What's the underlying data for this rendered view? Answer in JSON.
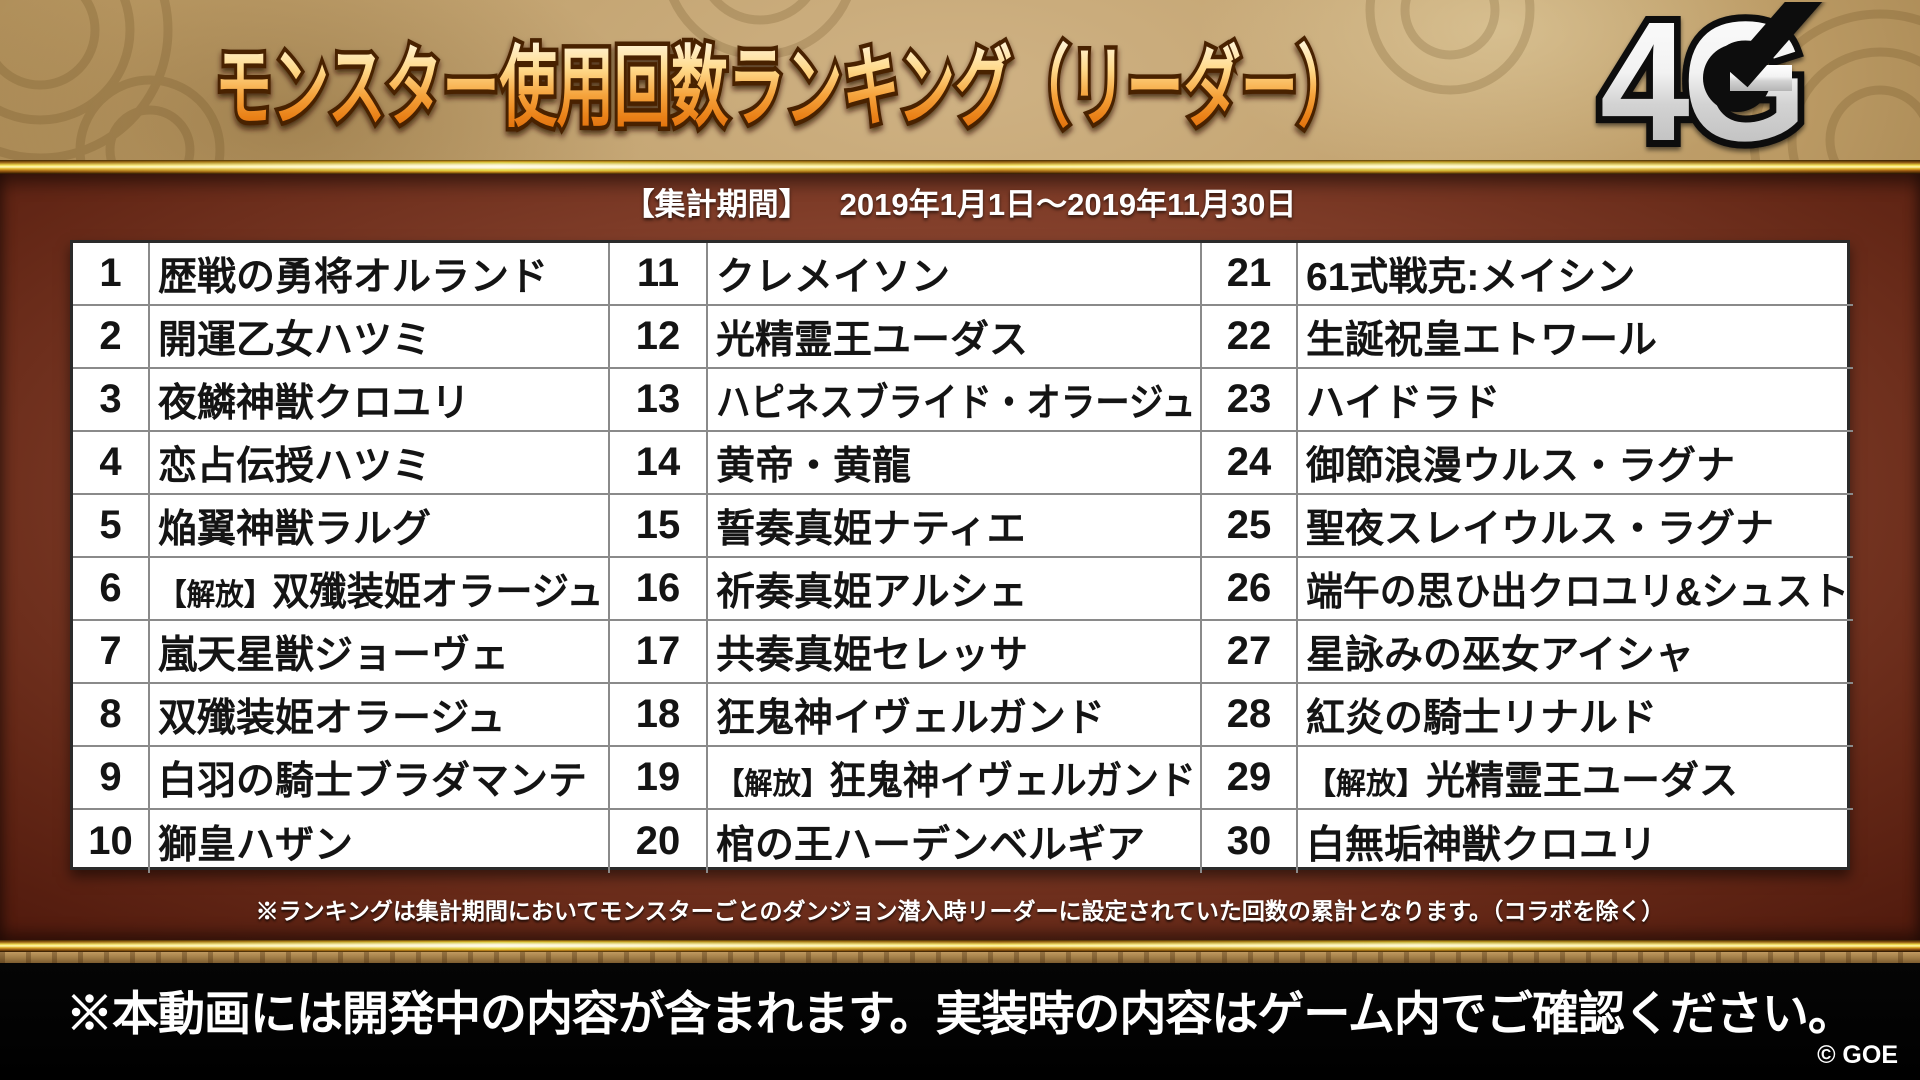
{
  "header": {
    "title": "モンスター使用回数ランキング（リーダー）",
    "logo_text": "4G"
  },
  "period": {
    "label": "【集計期間】",
    "range": "2019年1月1日～2019年11月30日"
  },
  "ranking": {
    "columns": [
      {
        "rows": [
          {
            "rank": 1,
            "prefix": "",
            "name": "歴戦の勇将オルランド"
          },
          {
            "rank": 2,
            "prefix": "",
            "name": "開運乙女ハツミ"
          },
          {
            "rank": 3,
            "prefix": "",
            "name": "夜鱗神獣クロユリ"
          },
          {
            "rank": 4,
            "prefix": "",
            "name": "恋占伝授ハツミ"
          },
          {
            "rank": 5,
            "prefix": "",
            "name": "焔翼神獣ラルグ"
          },
          {
            "rank": 6,
            "prefix": "【解放】",
            "name": "双殲装姫オラージュ"
          },
          {
            "rank": 7,
            "prefix": "",
            "name": "嵐天星獣ジョーヴェ"
          },
          {
            "rank": 8,
            "prefix": "",
            "name": "双殲装姫オラージュ"
          },
          {
            "rank": 9,
            "prefix": "",
            "name": "白羽の騎士ブラダマンテ"
          },
          {
            "rank": 10,
            "prefix": "",
            "name": "獅皇ハザン"
          }
        ]
      },
      {
        "rows": [
          {
            "rank": 11,
            "prefix": "",
            "name": "クレメイソン"
          },
          {
            "rank": 12,
            "prefix": "",
            "name": "光精霊王ユーダス"
          },
          {
            "rank": 13,
            "prefix": "",
            "name": "ハピネスブライド・オラージュ"
          },
          {
            "rank": 14,
            "prefix": "",
            "name": "黄帝・黄龍"
          },
          {
            "rank": 15,
            "prefix": "",
            "name": "誓奏真姫ナティエ"
          },
          {
            "rank": 16,
            "prefix": "",
            "name": "祈奏真姫アルシェ"
          },
          {
            "rank": 17,
            "prefix": "",
            "name": "共奏真姫セレッサ"
          },
          {
            "rank": 18,
            "prefix": "",
            "name": "狂鬼神イヴェルガンド"
          },
          {
            "rank": 19,
            "prefix": "【解放】",
            "name": "狂鬼神イヴェルガンド"
          },
          {
            "rank": 20,
            "prefix": "",
            "name": "棺の王ハーデンベルギア"
          }
        ]
      },
      {
        "rows": [
          {
            "rank": 21,
            "prefix": "",
            "name": "61式戦克:メイシン"
          },
          {
            "rank": 22,
            "prefix": "",
            "name": "生誕祝皇エトワール"
          },
          {
            "rank": 23,
            "prefix": "",
            "name": "ハイドラド"
          },
          {
            "rank": 24,
            "prefix": "",
            "name": "御節浪漫ウルス・ラグナ"
          },
          {
            "rank": 25,
            "prefix": "",
            "name": "聖夜スレイウルス・ラグナ"
          },
          {
            "rank": 26,
            "prefix": "",
            "name": "端午の思ひ出クロユリ&シュスト"
          },
          {
            "rank": 27,
            "prefix": "",
            "name": "星詠みの巫女アイシャ"
          },
          {
            "rank": 28,
            "prefix": "",
            "name": "紅炎の騎士リナルド"
          },
          {
            "rank": 29,
            "prefix": "【解放】",
            "name": "光精霊王ユーダス"
          },
          {
            "rank": 30,
            "prefix": "",
            "name": "白無垢神獣クロユリ"
          }
        ]
      }
    ]
  },
  "notes": {
    "table_note": "※ランキングは集計期間においてモンスターごとのダンジョン潜入時リーダーに設定されていた回数の累計となります。（コラボを除く）",
    "dev_note": "※本動画には開発中の内容が含まれます。実装時の内容はゲーム内でご確認ください。",
    "copyright": "© GOE"
  },
  "colors": {
    "title_orange": "#e87d14",
    "title_cream": "#fff7e0",
    "gold_divider": "#f6e88e",
    "band_maroon": "#86422d",
    "header_parchment": "#bb9a64",
    "table_bg": "#ffffff",
    "table_text": "#141414",
    "footer_black": "#000000"
  }
}
